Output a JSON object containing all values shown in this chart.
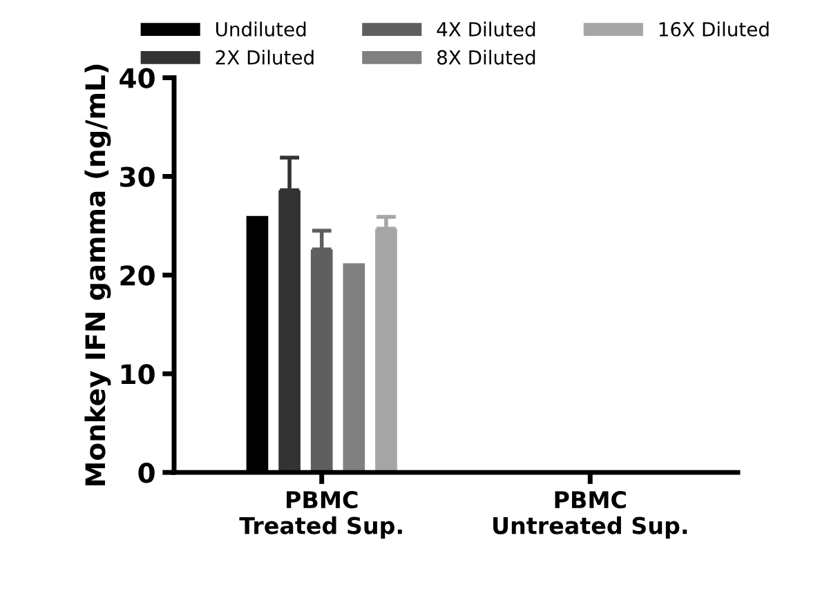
{
  "chart_data": {
    "type": "bar",
    "ylabel": "Monkey IFN gamma (ng/mL)",
    "categories": [
      "PBMC\nTreated Sup.",
      "PBMC\nUntreated Sup."
    ],
    "series": [
      {
        "name": "Undiluted",
        "color": "#000000",
        "values": [
          26.0,
          0
        ]
      },
      {
        "name": "2X Diluted",
        "color": "#333333",
        "values": [
          28.6,
          0
        ],
        "errors": [
          [
            28.6,
            31.9
          ],
          null
        ]
      },
      {
        "name": "4X Diluted",
        "color": "#5f5f5f",
        "values": [
          22.6,
          0
        ],
        "errors": [
          [
            22.6,
            24.5
          ],
          null
        ]
      },
      {
        "name": "8X Diluted",
        "color": "#808080",
        "values": [
          21.2,
          0
        ]
      },
      {
        "name": "16X Diluted",
        "color": "#a6a6a6",
        "values": [
          24.7,
          0
        ],
        "errors": [
          [
            24.7,
            25.9
          ],
          null
        ]
      }
    ],
    "ylim": [
      0,
      40
    ],
    "yticks": [
      0,
      10,
      20,
      30,
      40
    ],
    "grid": false,
    "legend": "top"
  }
}
